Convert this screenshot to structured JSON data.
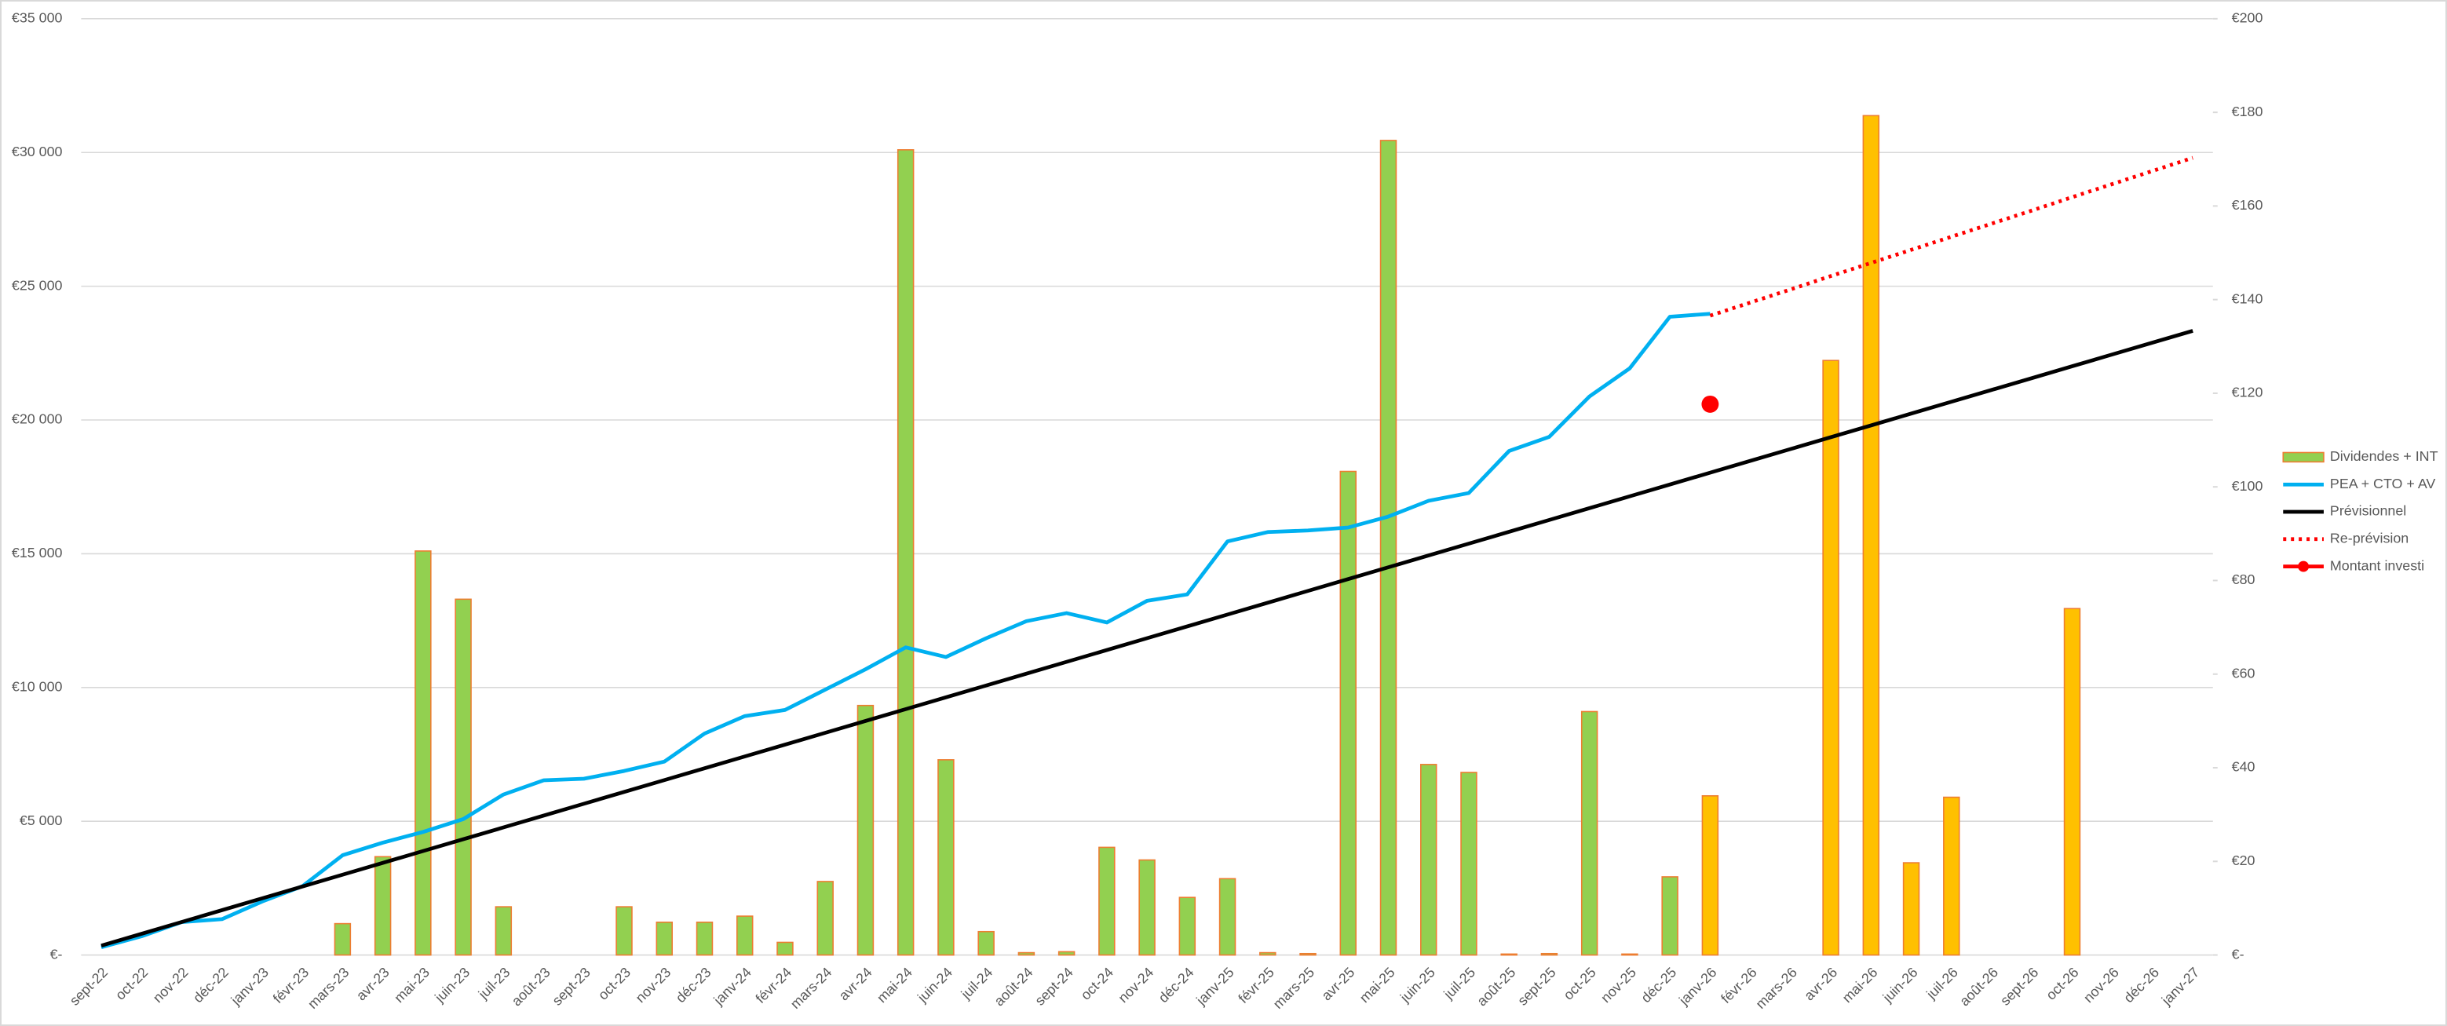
{
  "chart_data": {
    "type": "combo",
    "categories": [
      "sept-22",
      "oct-22",
      "nov-22",
      "déc-22",
      "janv-23",
      "févr-23",
      "mars-23",
      "avr-23",
      "mai-23",
      "juin-23",
      "juil-23",
      "août-23",
      "sept-23",
      "oct-23",
      "nov-23",
      "déc-23",
      "janv-24",
      "févr-24",
      "mars-24",
      "avr-24",
      "mai-24",
      "juin-24",
      "juil-24",
      "août-24",
      "sept-24",
      "oct-24",
      "nov-24",
      "déc-24",
      "janv-25",
      "févr-25",
      "mars-25",
      "avr-25",
      "mai-25",
      "juin-25",
      "juil-25",
      "août-25",
      "sept-25",
      "oct-25",
      "nov-25",
      "déc-25",
      "janv-26",
      "févr-26",
      "mars-26",
      "avr-26",
      "mai-26",
      "juin-26",
      "juil-26",
      "août-26",
      "sept-26",
      "oct-26",
      "nov-26",
      "déc-26",
      "janv-27"
    ],
    "ylim": [
      0,
      35000
    ],
    "yticks": [
      {
        "value": 0,
        "label": "€-"
      },
      {
        "value": 5000,
        "label": "€5 000"
      },
      {
        "value": 10000,
        "label": "€10 000"
      },
      {
        "value": 15000,
        "label": "€15 000"
      },
      {
        "value": 20000,
        "label": "€20 000"
      },
      {
        "value": 25000,
        "label": "€25 000"
      },
      {
        "value": 30000,
        "label": "€30 000"
      },
      {
        "value": 35000,
        "label": "€35 000"
      }
    ],
    "y2lim": [
      0,
      200
    ],
    "y2ticks": [
      {
        "value": 0,
        "label": "€-"
      },
      {
        "value": 20,
        "label": "€20"
      },
      {
        "value": 40,
        "label": "€40"
      },
      {
        "value": 60,
        "label": "€60"
      },
      {
        "value": 80,
        "label": "€80"
      },
      {
        "value": 100,
        "label": "€100"
      },
      {
        "value": 120,
        "label": "€120"
      },
      {
        "value": 140,
        "label": "€140"
      },
      {
        "value": 160,
        "label": "€160"
      },
      {
        "value": 180,
        "label": "€180"
      },
      {
        "value": 200,
        "label": "€200"
      }
    ],
    "grid": true,
    "legend": "right",
    "series": [
      {
        "name": "Dividendes + INT",
        "type": "bar",
        "axis": "y2",
        "color": "#92d050",
        "edge": "#ed7d31",
        "values": [
          null,
          null,
          null,
          null,
          null,
          null,
          6.7,
          21,
          86.3,
          76,
          10.3,
          null,
          null,
          10.3,
          7,
          7,
          8.3,
          2.7,
          15.7,
          53.3,
          172,
          41.7,
          5,
          0.5,
          0.7,
          23,
          20.3,
          12.3,
          16.3,
          0.5,
          0.3,
          103.3,
          174,
          40.7,
          39,
          0.2,
          0.3,
          52,
          0.2,
          16.7,
          34,
          null,
          null,
          127,
          179.3,
          19.7,
          33.7,
          null,
          null,
          74,
          null,
          null,
          null
        ],
        "colors": [
          "#92d050",
          "#92d050",
          "#92d050",
          "#92d050",
          "#92d050",
          "#92d050",
          "#92d050",
          "#92d050",
          "#92d050",
          "#92d050",
          "#92d050",
          "#92d050",
          "#92d050",
          "#92d050",
          "#92d050",
          "#92d050",
          "#92d050",
          "#92d050",
          "#92d050",
          "#92d050",
          "#92d050",
          "#92d050",
          "#92d050",
          "#92d050",
          "#92d050",
          "#92d050",
          "#92d050",
          "#92d050",
          "#92d050",
          "#92d050",
          "#92d050",
          "#92d050",
          "#92d050",
          "#92d050",
          "#92d050",
          "#92d050",
          "#92d050",
          "#92d050",
          "#92d050",
          "#92d050",
          "#ffc000",
          "#ffc000",
          "#ffc000",
          "#ffc000",
          "#ffc000",
          "#ffc000",
          "#ffc000",
          "#ffc000",
          "#ffc000",
          "#ffc000",
          "#ffc000",
          "#ffc000",
          "#ffc000"
        ]
      },
      {
        "name": "PEA + CTO + AV",
        "type": "line",
        "axis": "y",
        "color": "#00b0f0",
        "dash": "solid",
        "values": [
          290,
          700,
          1230,
          1340,
          2000,
          2570,
          3730,
          4200,
          4600,
          5080,
          6000,
          6530,
          6590,
          6880,
          7230,
          8280,
          8930,
          9160,
          9920,
          10680,
          11500,
          11140,
          11840,
          12480,
          12780,
          12430,
          13240,
          13480,
          15460,
          15810,
          15870,
          15980,
          16390,
          16980,
          17270,
          18840,
          19370,
          20880,
          21930,
          23860,
          23970,
          null,
          null,
          null,
          null,
          null,
          null,
          null,
          null,
          null,
          null,
          null,
          null
        ]
      },
      {
        "name": "Prévisionnel",
        "type": "line",
        "axis": "y",
        "color": "#000000",
        "dash": "solid",
        "values": [
          350,
          792,
          1234,
          1676,
          2118,
          2560,
          3002,
          3444,
          3886,
          4328,
          4770,
          5212,
          5654,
          6096,
          6538,
          6980,
          7422,
          7864,
          8306,
          8748,
          9190,
          9632,
          10074,
          10516,
          10958,
          11400,
          11842,
          12284,
          12726,
          13168,
          13610,
          14052,
          14494,
          14936,
          15378,
          15820,
          16262,
          16704,
          17146,
          17588,
          18030,
          18472,
          18914,
          19356,
          19798,
          20240,
          20682,
          21124,
          21566,
          22008,
          22450,
          22892,
          23334
        ]
      },
      {
        "name": "Re-prévision",
        "type": "line",
        "axis": "y",
        "color": "#ff0000",
        "dash": "dotted",
        "values": [
          null,
          null,
          null,
          null,
          null,
          null,
          null,
          null,
          null,
          null,
          null,
          null,
          null,
          null,
          null,
          null,
          null,
          null,
          null,
          null,
          null,
          null,
          null,
          null,
          null,
          null,
          null,
          null,
          null,
          null,
          null,
          null,
          null,
          null,
          null,
          null,
          null,
          null,
          null,
          null,
          23900,
          24390,
          24880,
          25380,
          25870,
          26360,
          26850,
          27340,
          27830,
          28330,
          28820,
          29310,
          29800
        ]
      },
      {
        "name": "Montant investi",
        "type": "scatter",
        "axis": "y",
        "color": "#ff0000",
        "values": [
          null,
          null,
          null,
          null,
          null,
          null,
          null,
          null,
          null,
          null,
          null,
          null,
          null,
          null,
          null,
          null,
          null,
          null,
          null,
          null,
          null,
          null,
          null,
          null,
          null,
          null,
          null,
          null,
          null,
          null,
          null,
          null,
          null,
          null,
          null,
          null,
          null,
          null,
          null,
          null,
          20590,
          null,
          null,
          null,
          null,
          null,
          null,
          null,
          null,
          null,
          null,
          null,
          null
        ]
      }
    ]
  }
}
